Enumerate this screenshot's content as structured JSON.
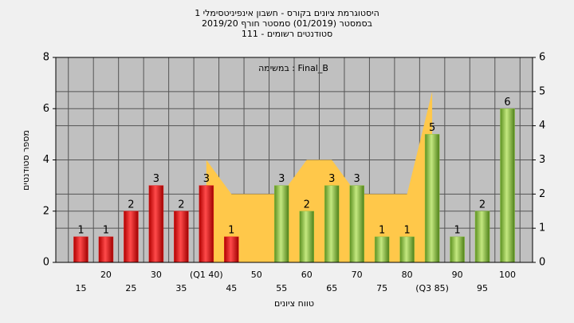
{
  "chart_data": {
    "type": "bar",
    "title": [
      "היסטוגרמת ציונים בקורס - חשבון אינפיניטסימלי 1",
      "בסמסטר  (01/2019)  סמסטר חורף 2019/20",
      "סטודנטים רשומים - 111"
    ],
    "annotation": "במשימה : Final_B",
    "y_label": "מספר סטודנטים",
    "x_label": "טווח ציונים",
    "categories": [
      "15",
      "20",
      "25",
      "30",
      "35",
      "(Q1 40)",
      "45",
      "50",
      "55",
      "60",
      "65",
      "70",
      "75",
      "80",
      "(Q3 85)",
      "90",
      "95",
      "100"
    ],
    "series": [
      {
        "type": "bar",
        "values": [
          1,
          1,
          2,
          3,
          2,
          3,
          1,
          0,
          3,
          2,
          3,
          3,
          1,
          1,
          5,
          1,
          2,
          6
        ],
        "colors": [
          "#e02020",
          "#e02020",
          "#e02020",
          "#e02020",
          "#e02020",
          "#e02020",
          "#e02020",
          "#e02020",
          "#8cc040",
          "#8cc040",
          "#8cc040",
          "#8cc040",
          "#8cc040",
          "#8cc040",
          "#8cc040",
          "#8cc040",
          "#8cc040",
          "#8cc040"
        ]
      },
      {
        "type": "area",
        "axis": "y2",
        "color": "#ffc84a",
        "values": [
          null,
          null,
          null,
          null,
          null,
          3,
          2,
          2,
          2,
          3,
          3,
          2,
          2,
          2,
          5,
          null,
          null,
          null
        ]
      }
    ],
    "ylim": [
      0,
      8
    ],
    "yticks": [
      0,
      2,
      4,
      6,
      8
    ],
    "y2lim": [
      0,
      6
    ],
    "y2ticks": [
      0,
      1,
      2,
      3,
      4,
      5,
      6
    ],
    "grid": true
  }
}
